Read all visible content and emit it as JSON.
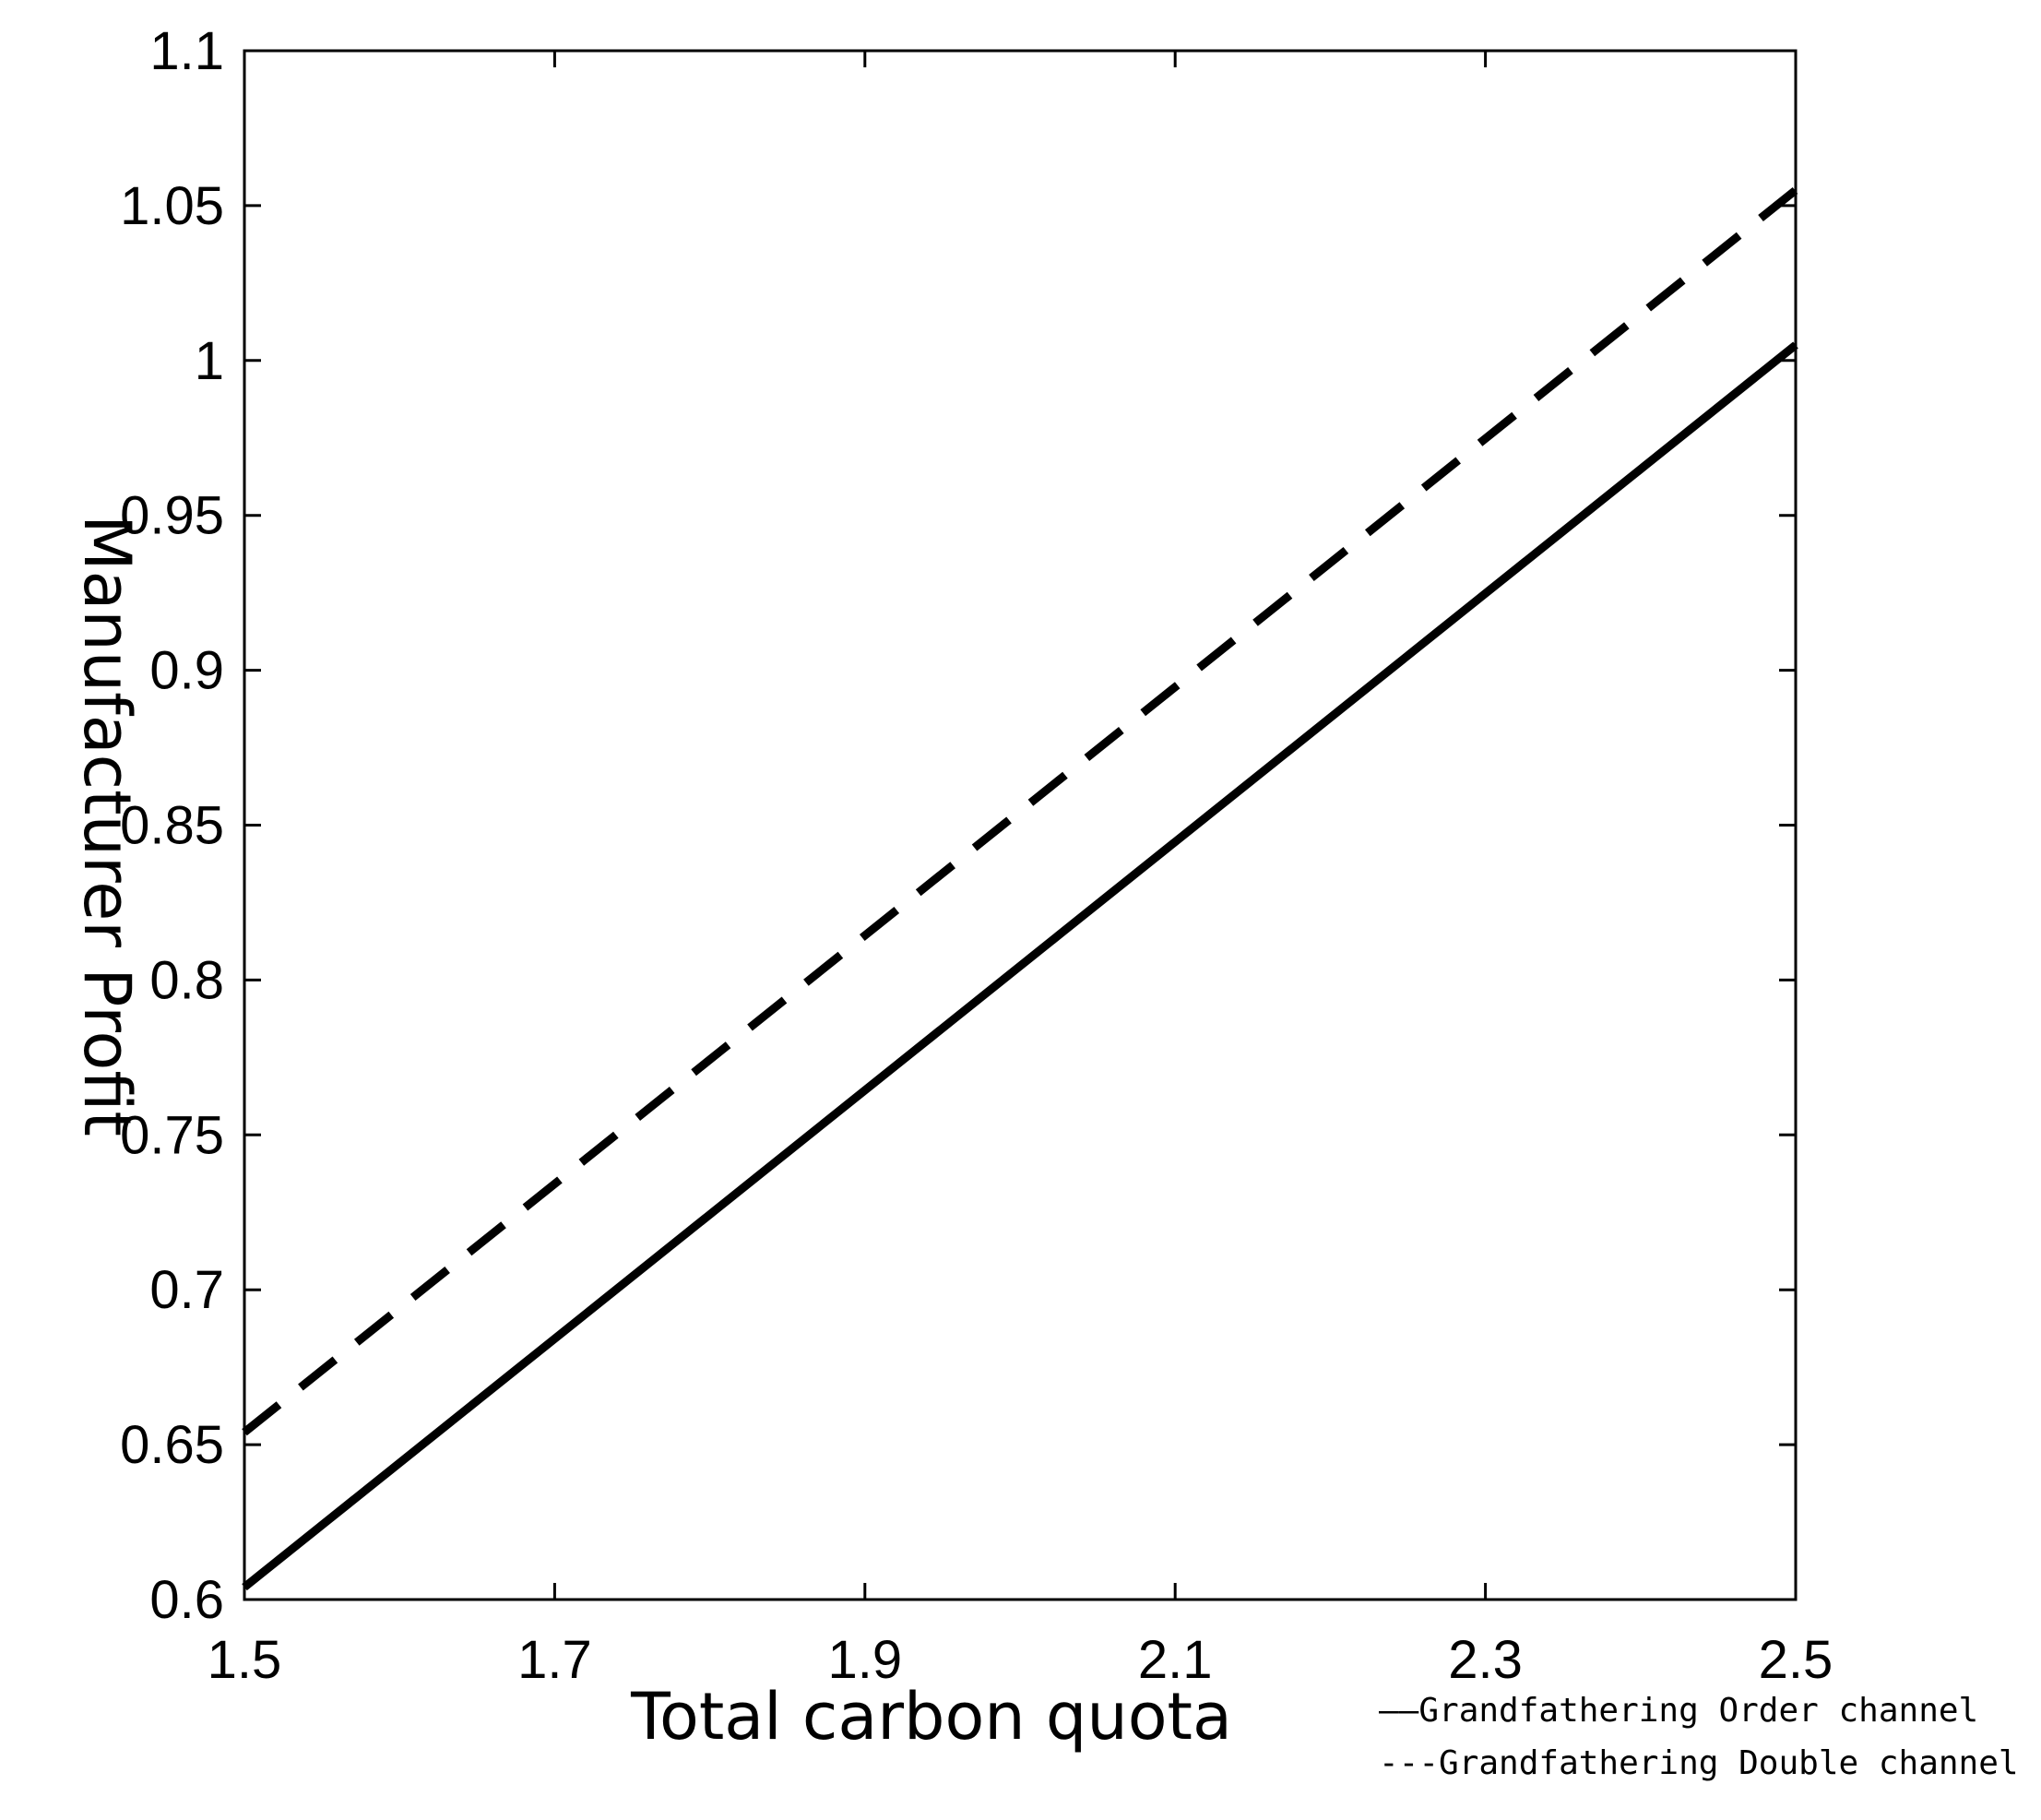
{
  "chart_data": {
    "type": "line",
    "title": "",
    "xlabel": "Total carbon quota",
    "ylabel": "Manufacturer Profit",
    "xlim": [
      1.5,
      2.5
    ],
    "ylim": [
      0.6,
      1.1
    ],
    "xticks": [
      1.5,
      1.7,
      1.9,
      2.1,
      2.3,
      2.5
    ],
    "xtick_labels": [
      "1.5",
      "1.7",
      "1.9",
      "2.1",
      "2.3",
      "2.5"
    ],
    "yticks": [
      0.6,
      0.65,
      0.7,
      0.75,
      0.8,
      0.85,
      0.9,
      0.95,
      1.0,
      1.05,
      1.1
    ],
    "ytick_labels": [
      "0.6",
      "0.65",
      "0.7",
      "0.75",
      "0.8",
      "0.85",
      "0.9",
      "0.95",
      "1",
      "1.05",
      "1.1"
    ],
    "grid": false,
    "legend_position": "bottom-right, outside plot",
    "series": [
      {
        "name": "Grandfathering Order channel",
        "legend_text": "——Grandfathering Order channel",
        "style": "solid",
        "color": "#000000",
        "x": [
          1.5,
          2.5
        ],
        "y": [
          0.604,
          1.005
        ]
      },
      {
        "name": "Grandfathering Double channel",
        "legend_text": "---Grandfathering Double channel",
        "style": "dashed",
        "color": "#000000",
        "x": [
          1.5,
          2.5
        ],
        "y": [
          0.654,
          1.055
        ]
      }
    ]
  }
}
